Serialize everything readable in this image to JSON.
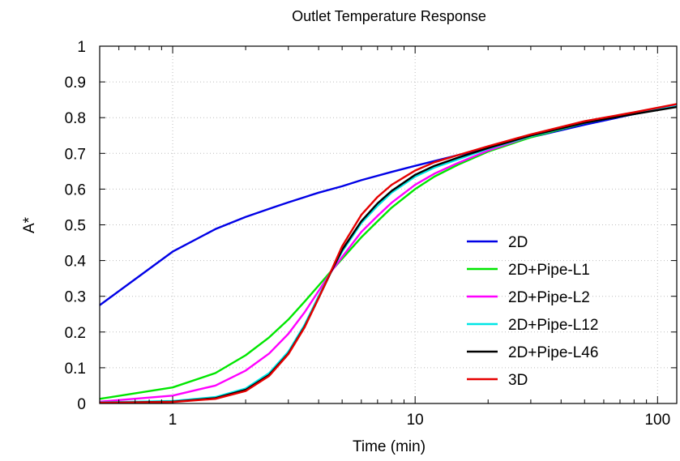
{
  "chart_data": {
    "type": "line",
    "title": "Outlet Temperature Response",
    "xlabel": "Time (min)",
    "ylabel": "A*",
    "xscale": "log",
    "xlim": [
      0.5,
      120
    ],
    "ylim": [
      0,
      1
    ],
    "xticks": [
      1,
      10,
      100
    ],
    "xtick_labels": [
      "1",
      "10",
      "100"
    ],
    "yticks": [
      0,
      0.1,
      0.2,
      0.3,
      0.4,
      0.5,
      0.6,
      0.7,
      0.8,
      0.9,
      1
    ],
    "ytick_labels": [
      "0",
      "0.1",
      "0.2",
      "0.3",
      "0.4",
      "0.5",
      "0.6",
      "0.7",
      "0.8",
      "0.9",
      "1"
    ],
    "grid": true,
    "legend_position": "center-right",
    "series": [
      {
        "name": "2D",
        "color": "#0000e6",
        "x": [
          0.5,
          1,
          1.5,
          2,
          2.5,
          3,
          4,
          5,
          6,
          8,
          10,
          15,
          20,
          30,
          50,
          80,
          120
        ],
        "y": [
          0.275,
          0.425,
          0.488,
          0.522,
          0.545,
          0.563,
          0.59,
          0.608,
          0.625,
          0.648,
          0.665,
          0.695,
          0.715,
          0.745,
          0.78,
          0.81,
          0.832
        ]
      },
      {
        "name": "2D+Pipe-L1",
        "color": "#00e600",
        "x": [
          0.5,
          1,
          1.5,
          2,
          2.5,
          3,
          3.5,
          4,
          4.5,
          5,
          6,
          7,
          8,
          10,
          12,
          15,
          20,
          30,
          50,
          80,
          120
        ],
        "y": [
          0.013,
          0.045,
          0.085,
          0.135,
          0.185,
          0.235,
          0.285,
          0.33,
          0.37,
          0.405,
          0.465,
          0.51,
          0.548,
          0.6,
          0.635,
          0.668,
          0.705,
          0.745,
          0.785,
          0.812,
          0.835
        ]
      },
      {
        "name": "2D+Pipe-L2",
        "color": "#ff00ff",
        "x": [
          0.5,
          1,
          1.5,
          2,
          2.5,
          3,
          3.5,
          4,
          4.5,
          5,
          6,
          7,
          8,
          10,
          12,
          15,
          20,
          30,
          50,
          80,
          120
        ],
        "y": [
          0.005,
          0.022,
          0.05,
          0.092,
          0.14,
          0.195,
          0.255,
          0.315,
          0.368,
          0.41,
          0.48,
          0.525,
          0.562,
          0.612,
          0.643,
          0.673,
          0.708,
          0.748,
          0.786,
          0.812,
          0.835
        ]
      },
      {
        "name": "2D+Pipe-L12",
        "color": "#00e6e6",
        "x": [
          0.5,
          1,
          1.5,
          2,
          2.5,
          3,
          3.5,
          4,
          4.5,
          5,
          6,
          7,
          8,
          10,
          12,
          15,
          20,
          30,
          50,
          80,
          120
        ],
        "y": [
          0.003,
          0.007,
          0.018,
          0.042,
          0.085,
          0.145,
          0.22,
          0.3,
          0.37,
          0.425,
          0.505,
          0.553,
          0.59,
          0.635,
          0.66,
          0.683,
          0.713,
          0.748,
          0.786,
          0.81,
          0.832
        ]
      },
      {
        "name": "2D+Pipe-L46",
        "color": "#000000",
        "x": [
          0.5,
          1,
          1.5,
          2,
          2.5,
          3,
          3.5,
          4,
          4.5,
          5,
          6,
          7,
          8,
          10,
          12,
          15,
          20,
          30,
          50,
          80,
          120
        ],
        "y": [
          0.002,
          0.005,
          0.015,
          0.038,
          0.08,
          0.14,
          0.215,
          0.295,
          0.368,
          0.43,
          0.51,
          0.56,
          0.595,
          0.64,
          0.665,
          0.688,
          0.715,
          0.75,
          0.786,
          0.81,
          0.83
        ]
      },
      {
        "name": "3D",
        "color": "#e60000",
        "x": [
          0.5,
          1,
          1.5,
          2,
          2.5,
          3,
          3.5,
          4,
          4.5,
          5,
          6,
          7,
          8,
          10,
          12,
          15,
          20,
          30,
          50,
          80,
          120
        ],
        "y": [
          0.002,
          0.004,
          0.013,
          0.035,
          0.077,
          0.138,
          0.213,
          0.295,
          0.37,
          0.44,
          0.528,
          0.578,
          0.612,
          0.652,
          0.675,
          0.695,
          0.72,
          0.753,
          0.79,
          0.815,
          0.838
        ]
      }
    ]
  }
}
